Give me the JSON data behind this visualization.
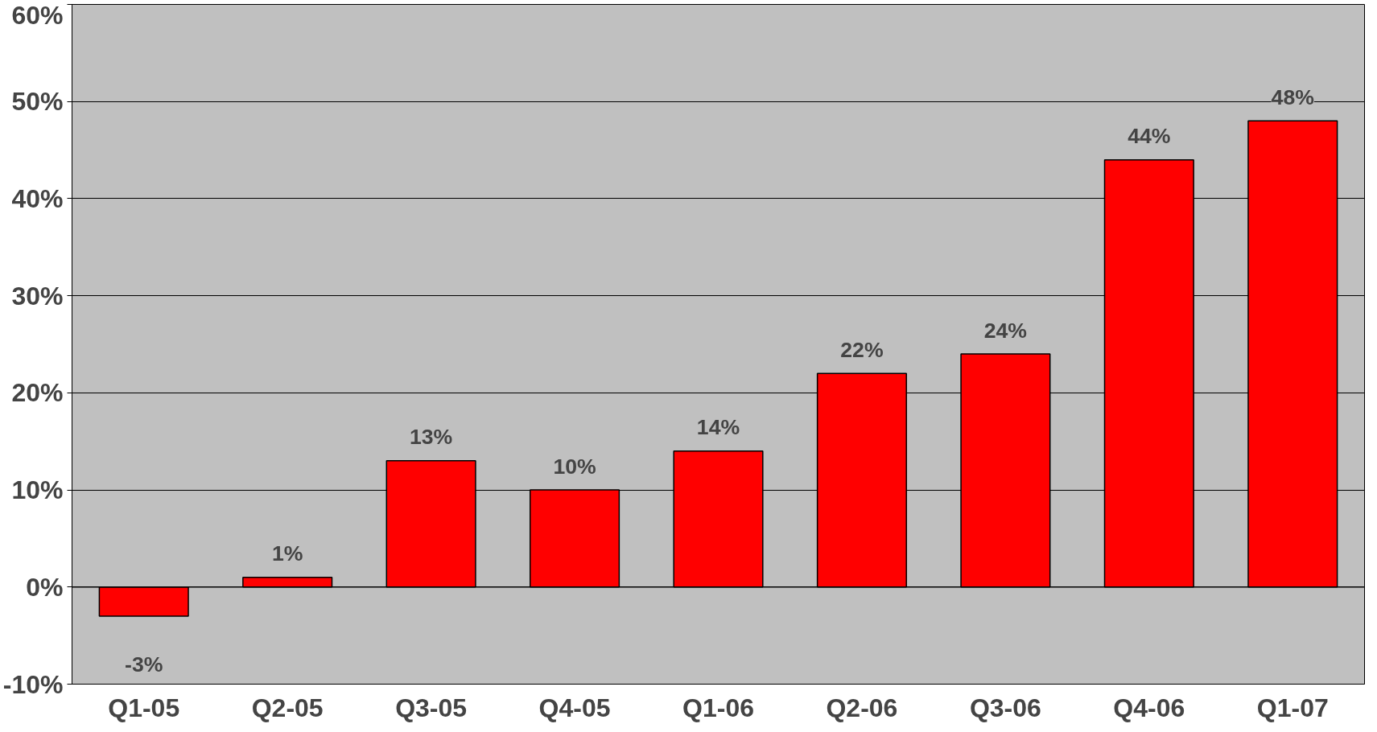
{
  "chart_data": {
    "type": "bar",
    "categories": [
      "Q1-05",
      "Q2-05",
      "Q3-05",
      "Q4-05",
      "Q1-06",
      "Q2-06",
      "Q3-06",
      "Q4-06",
      "Q1-07"
    ],
    "values": [
      -3,
      1,
      13,
      10,
      14,
      22,
      24,
      44,
      48
    ],
    "value_labels": [
      "-3%",
      "1%",
      "13%",
      "10%",
      "14%",
      "22%",
      "24%",
      "44%",
      "48%"
    ],
    "color": "#ff0000",
    "ylim": [
      -10,
      60
    ],
    "yticks": [
      {
        "value": -10,
        "label": "-10%"
      },
      {
        "value": 0,
        "label": "0%"
      },
      {
        "value": 10,
        "label": "10%"
      },
      {
        "value": 20,
        "label": "20%"
      },
      {
        "value": 30,
        "label": "30%"
      },
      {
        "value": 40,
        "label": "40%"
      },
      {
        "value": 50,
        "label": "50%"
      },
      {
        "value": 60,
        "label": "60%"
      }
    ],
    "grid": "y"
  }
}
